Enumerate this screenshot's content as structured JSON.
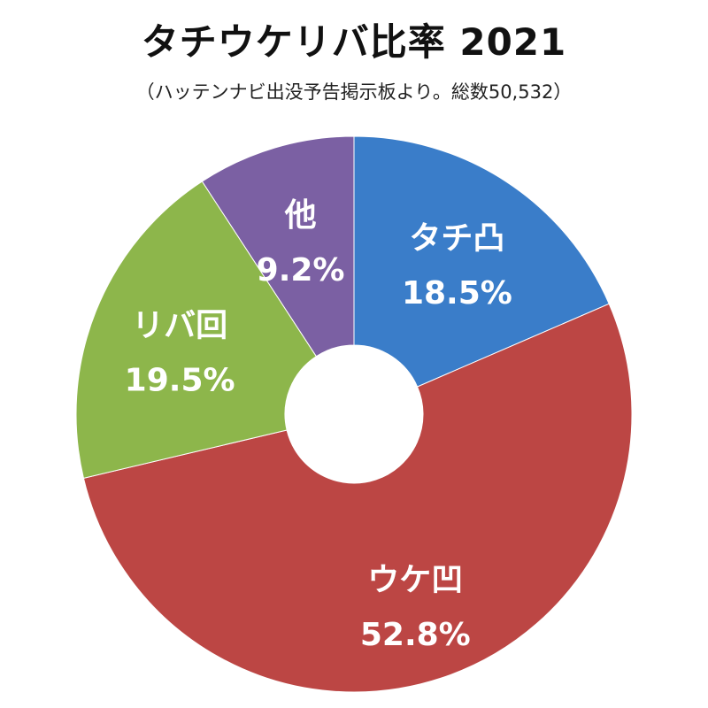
{
  "chart_data": {
    "type": "pie",
    "donut": true,
    "title": "タチウケリバ比率 2021",
    "subtitle": "（ハッテンナビ出没予告掲示板より。総数50,532）",
    "start_angle_deg": 0,
    "direction": "clockwise",
    "slices": [
      {
        "label": "タチ凸",
        "value": 18.5,
        "value_label": "18.5%",
        "color": "#3a7dc9"
      },
      {
        "label": "ウケ凹",
        "value": 52.8,
        "value_label": "52.8%",
        "color": "#bc4644"
      },
      {
        "label": "リバ回",
        "value": 19.5,
        "value_label": "19.5%",
        "color": "#8db64b"
      },
      {
        "label": "他",
        "value": 9.2,
        "value_label": "9.2%",
        "color": "#7b60a3"
      }
    ]
  }
}
